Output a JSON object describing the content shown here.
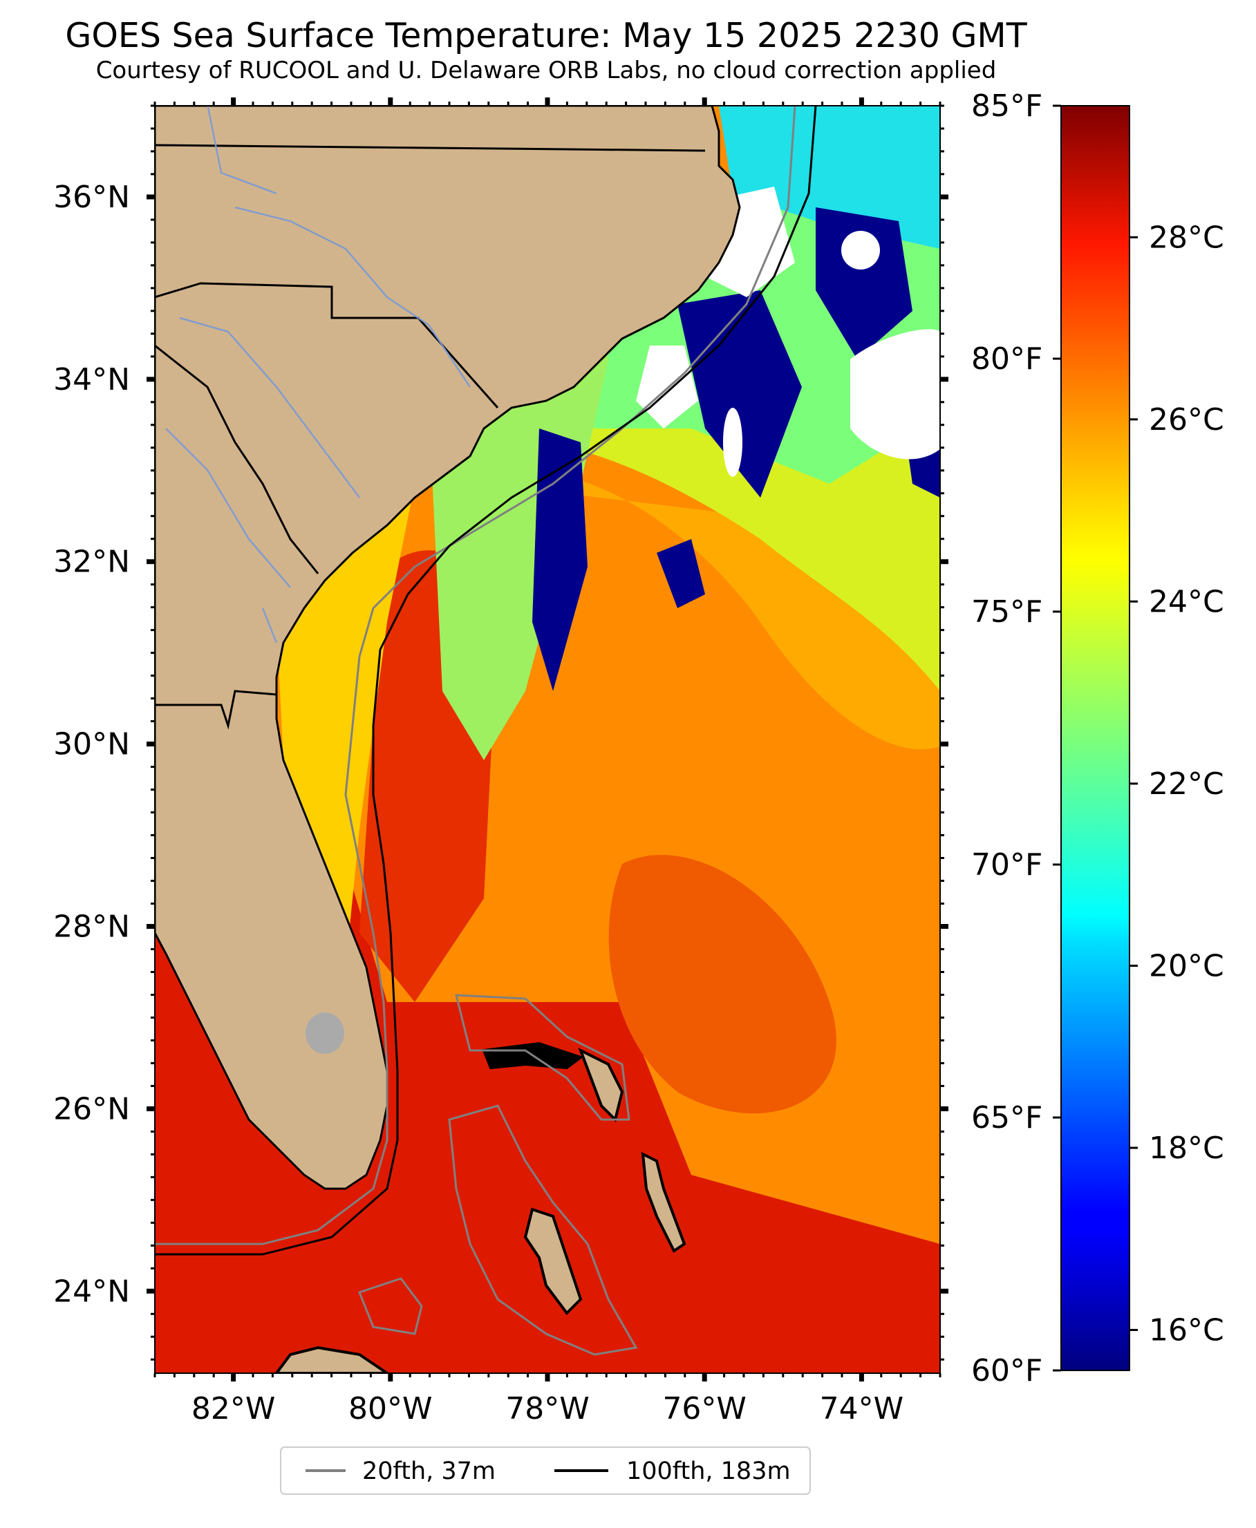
{
  "title": "GOES Sea Surface Temperature: May 15 2025 2230 GMT",
  "subtitle": "Courtesy of RUCOOL and U. Delaware ORB Labs, no cloud correction applied",
  "map": {
    "variable": "sea surface temperature",
    "colormap": "jet",
    "land_color": "#d2b48c",
    "cloud_color": "#ffffff",
    "lon_range": [
      -83.0,
      -73.0
    ],
    "lat_range": [
      23.1,
      37.0
    ],
    "lon_ticks": [
      {
        "value": -82,
        "label": "82°W"
      },
      {
        "value": -80,
        "label": "80°W"
      },
      {
        "value": -78,
        "label": "78°W"
      },
      {
        "value": -76,
        "label": "76°W"
      },
      {
        "value": -74,
        "label": "74°W"
      }
    ],
    "lat_ticks": [
      {
        "value": 24,
        "label": "24°N"
      },
      {
        "value": 26,
        "label": "26°N"
      },
      {
        "value": 28,
        "label": "28°N"
      },
      {
        "value": 30,
        "label": "30°N"
      },
      {
        "value": 32,
        "label": "32°N"
      },
      {
        "value": 34,
        "label": "34°N"
      },
      {
        "value": 36,
        "label": "36°N"
      }
    ]
  },
  "colorbar": {
    "range_f": [
      60,
      85
    ],
    "fahrenheit_ticks": [
      {
        "value": 60,
        "label": "60°F"
      },
      {
        "value": 65,
        "label": "65°F"
      },
      {
        "value": 70,
        "label": "70°F"
      },
      {
        "value": 75,
        "label": "75°F"
      },
      {
        "value": 80,
        "label": "80°F"
      },
      {
        "value": 85,
        "label": "85°F"
      }
    ],
    "celsius_ticks": [
      {
        "value": 16,
        "label": "16°C"
      },
      {
        "value": 18,
        "label": "18°C"
      },
      {
        "value": 20,
        "label": "20°C"
      },
      {
        "value": 22,
        "label": "22°C"
      },
      {
        "value": 24,
        "label": "24°C"
      },
      {
        "value": 26,
        "label": "26°C"
      },
      {
        "value": 28,
        "label": "28°C"
      }
    ]
  },
  "legend": {
    "placement": "bottom-center",
    "items": [
      {
        "label": "20fth, 37m",
        "color": "#808080"
      },
      {
        "label": "100fth, 183m",
        "color": "#000000"
      }
    ]
  }
}
